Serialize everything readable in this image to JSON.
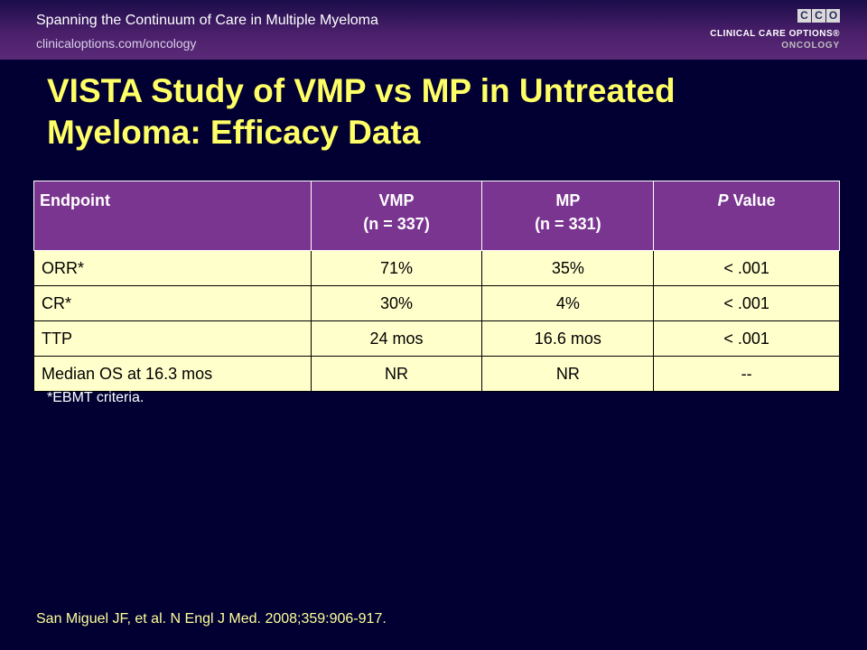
{
  "header": {
    "conference_title": "Spanning the Continuum of Care in Multiple Myeloma",
    "url": "clinicaloptions.com/oncology",
    "logo": {
      "letters": [
        "C",
        "C",
        "O"
      ],
      "line1": "CLINICAL CARE OPTIONS®",
      "line2": "ONCOLOGY"
    }
  },
  "slide": {
    "title": "VISTA Study of VMP vs MP in Untreated Myeloma: Efficacy Data"
  },
  "table": {
    "headers": [
      {
        "line1": "Endpoint",
        "line2": ""
      },
      {
        "line1": "VMP",
        "line2": "(n = 337)"
      },
      {
        "line1": "MP",
        "line2": "(n = 331)"
      },
      {
        "italic": "P",
        "rest": " Value"
      }
    ],
    "rows": [
      [
        "ORR*",
        "71%",
        "35%",
        "< .001"
      ],
      [
        "CR*",
        "30%",
        "4%",
        "< .001"
      ],
      [
        "TTP",
        "24 mos",
        "16.6 mos",
        "< .001"
      ],
      [
        "Median OS at 16.3 mos",
        "NR",
        "NR",
        "--"
      ]
    ]
  },
  "footnote": "*EBMT criteria.",
  "citation": "San Miguel JF, et al. N Engl J Med. 2008;359:906-917.",
  "colors": {
    "background": "#020033",
    "title": "#ffff66",
    "header_fill": "#7a3590",
    "cell_fill": "#ffffcc"
  }
}
